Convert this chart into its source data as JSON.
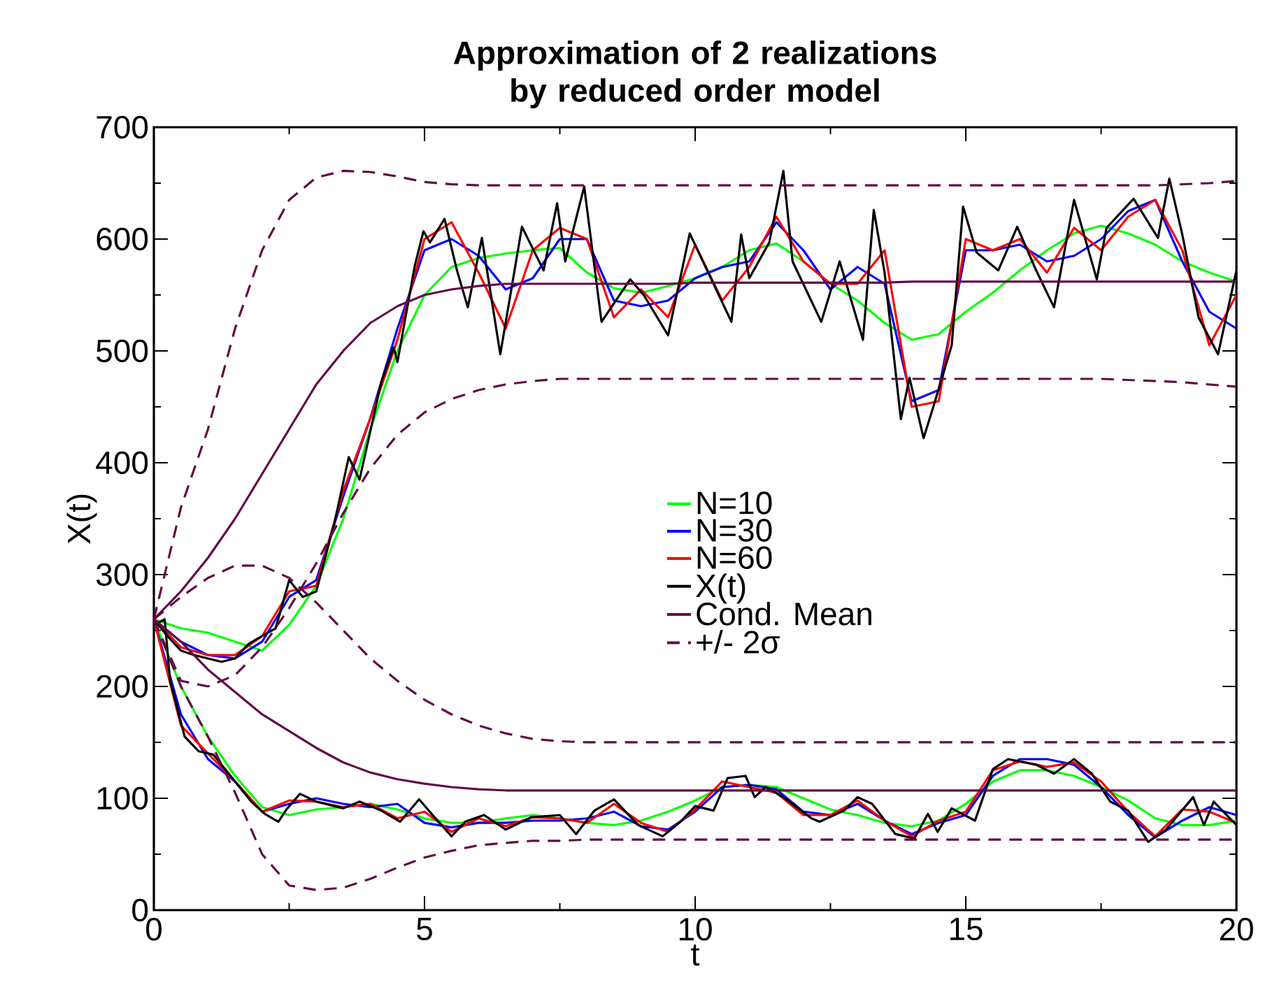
{
  "chart_data": {
    "type": "line",
    "title": "Approximation of 2 realizations by reduced order model",
    "xlabel": "t",
    "ylabel": "X(t)",
    "xlim": [
      0,
      20
    ],
    "ylim": [
      0,
      700
    ],
    "xticks": [
      0,
      5,
      10,
      15,
      20
    ],
    "yticks": [
      0,
      100,
      200,
      300,
      400,
      500,
      600,
      700
    ],
    "legend": "center",
    "marker": "none",
    "line_style": "solid",
    "x": [
      0,
      0.5,
      1,
      1.5,
      2,
      2.5,
      3,
      3.5,
      4,
      4.5,
      5,
      5.5,
      6,
      6.5,
      7,
      7.5,
      8,
      8.5,
      9,
      9.5,
      10,
      10.5,
      11,
      11.5,
      12,
      12.5,
      13,
      13.5,
      14,
      14.5,
      15,
      15.5,
      16,
      16.5,
      17,
      17.5,
      18,
      18.5,
      19,
      19.5,
      20
    ],
    "series": [
      {
        "name": "N=10",
        "color": "#00ff00",
        "values": [
          260,
          252,
          248,
          240,
          232,
          255,
          290,
          350,
          430,
          500,
          550,
          575,
          583,
          587,
          590,
          592,
          570,
          556,
          552,
          558,
          565,
          575,
          590,
          596,
          580,
          560,
          545,
          525,
          510,
          515,
          535,
          552,
          572,
          590,
          605,
          612,
          605,
          595,
          580,
          570,
          562
        ]
      },
      {
        "name": "N=30",
        "color": "#0000ff",
        "values": [
          260,
          240,
          228,
          225,
          240,
          280,
          295,
          370,
          440,
          520,
          590,
          600,
          585,
          555,
          565,
          600,
          600,
          545,
          540,
          545,
          565,
          575,
          580,
          615,
          590,
          555,
          575,
          560,
          455,
          465,
          590,
          590,
          595,
          580,
          585,
          600,
          625,
          635,
          580,
          535,
          520
        ]
      },
      {
        "name": "N=60",
        "color": "#ff0000",
        "values": [
          260,
          235,
          228,
          228,
          245,
          285,
          290,
          375,
          440,
          510,
          600,
          615,
          570,
          520,
          590,
          610,
          600,
          530,
          555,
          530,
          595,
          545,
          575,
          620,
          580,
          560,
          560,
          590,
          450,
          455,
          600,
          590,
          600,
          570,
          610,
          590,
          620,
          635,
          590,
          505,
          550
        ]
      },
      {
        "name": "X(t)",
        "color": "#000000",
        "x": [
          0,
          0.25,
          0.5,
          0.75,
          1,
          1.25,
          1.5,
          1.75,
          2,
          2.25,
          2.5,
          2.75,
          3,
          3.34,
          3.6,
          3.8,
          4.2,
          4.43,
          4.5,
          4.82,
          4.98,
          5.1,
          5.37,
          5.6,
          5.8,
          6.06,
          6.4,
          6.8,
          7.2,
          7.45,
          7.6,
          7.95,
          8.27,
          8.8,
          9.05,
          9.5,
          9.9,
          10.67,
          10.85,
          11.0,
          11.37,
          11.63,
          11.8,
          12.33,
          12.67,
          13.1,
          13.3,
          13.5,
          13.8,
          13.96,
          14.22,
          14.4,
          14.74,
          14.95,
          15.2,
          15.6,
          15.95,
          16.3,
          16.63,
          17.0,
          17.42,
          17.6,
          18.1,
          18.55,
          18.76,
          19.0,
          19.3,
          19.66,
          20
        ],
        "values": [
          260,
          245,
          232,
          228,
          225,
          222,
          225,
          238,
          245,
          252,
          295,
          280,
          285,
          347,
          405,
          385,
          472,
          503,
          490,
          576,
          607,
          597,
          618,
          572,
          539,
          601,
          497,
          611,
          572,
          632,
          580,
          647,
          526,
          564,
          550,
          514,
          605,
          526,
          604,
          565,
          597,
          661,
          580,
          526,
          580,
          510,
          626,
          570,
          439,
          476,
          422,
          450,
          505,
          629,
          588,
          572,
          611,
          572,
          539,
          635,
          564,
          610,
          636,
          601,
          654,
          604,
          530,
          497,
          572
        ]
      },
      {
        "name": "Cond. Mean",
        "color": "#640a46",
        "values": [
          260,
          285,
          315,
          350,
          390,
          430,
          470,
          500,
          525,
          540,
          550,
          555,
          558,
          560,
          560,
          560,
          560,
          560,
          560,
          560,
          561,
          561,
          561,
          561,
          561,
          561,
          561,
          561,
          562,
          562,
          562,
          562,
          562,
          562,
          562,
          562,
          562,
          562,
          562,
          562,
          562
        ]
      },
      {
        "name": "+/- 2σ",
        "color": "#640a46",
        "line_style": "dashed",
        "values": [
          260,
          360,
          430,
          520,
          590,
          635,
          655,
          661,
          660,
          656,
          651,
          649,
          648,
          648,
          648,
          648,
          648,
          648,
          648,
          648,
          648,
          648,
          648,
          648,
          648,
          648,
          648,
          648,
          648,
          648,
          648,
          648,
          648,
          648,
          648,
          648,
          648,
          648,
          649,
          650,
          652
        ]
      },
      {
        "color": "#640a46",
        "line_style": "dashed",
        "values": [
          260,
          205,
          200,
          210,
          235,
          270,
          310,
          355,
          395,
          425,
          445,
          457,
          465,
          470,
          473,
          475,
          475,
          475,
          475,
          475,
          475,
          475,
          475,
          475,
          475,
          475,
          475,
          475,
          475,
          475,
          475,
          475,
          475,
          475,
          475,
          475,
          474,
          473,
          472,
          470,
          468
        ]
      },
      {
        "color": "#00ff00",
        "values": [
          260,
          200,
          155,
          120,
          92,
          85,
          90,
          92,
          95,
          90,
          82,
          78,
          78,
          82,
          85,
          82,
          78,
          76,
          80,
          88,
          98,
          110,
          112,
          110,
          100,
          90,
          85,
          78,
          75,
          80,
          95,
          115,
          125,
          125,
          120,
          110,
          98,
          82,
          76,
          76,
          80
        ]
      },
      {
        "color": "#0000ff",
        "values": [
          260,
          175,
          135,
          115,
          88,
          95,
          100,
          95,
          92,
          95,
          78,
          74,
          78,
          78,
          80,
          80,
          82,
          88,
          75,
          72,
          88,
          110,
          112,
          108,
          88,
          85,
          95,
          80,
          68,
          78,
          85,
          120,
          135,
          135,
          130,
          110,
          85,
          65,
          80,
          92,
          85
        ]
      },
      {
        "color": "#ff0000",
        "values": [
          260,
          165,
          140,
          115,
          88,
          98,
          97,
          92,
          95,
          82,
          88,
          70,
          82,
          75,
          83,
          82,
          78,
          95,
          78,
          70,
          90,
          115,
          110,
          105,
          85,
          85,
          98,
          80,
          66,
          80,
          88,
          125,
          133,
          128,
          132,
          115,
          88,
          66,
          90,
          88,
          78
        ]
      },
      {
        "color": "#000000",
        "x": [
          0,
          0.2,
          0.3,
          0.57,
          0.83,
          1.1,
          1.25,
          1.45,
          1.8,
          2.05,
          2.3,
          2.45,
          2.7,
          3.0,
          3.5,
          3.8,
          4.2,
          4.55,
          4.9,
          5.15,
          5.5,
          5.75,
          6.1,
          6.5,
          6.97,
          7.5,
          7.8,
          8.14,
          8.5,
          8.95,
          9.4,
          9.73,
          10.0,
          10.34,
          10.6,
          10.93,
          11.1,
          11.3,
          11.63,
          12.15,
          12.3,
          12.75,
          13.0,
          13.27,
          13.7,
          14.05,
          14.3,
          14.48,
          14.74,
          15.17,
          15.5,
          15.78,
          16.3,
          16.63,
          17.0,
          17.33,
          17.67,
          18.0,
          18.37,
          18.7,
          19.2,
          19.4,
          19.58,
          20
        ],
        "values": [
          255,
          260,
          205,
          155,
          142,
          139,
          130,
          118,
          97,
          86,
          79,
          90,
          104,
          97,
          91,
          97,
          89,
          79,
          99,
          85,
          66,
          79,
          85,
          72,
          83,
          85,
          68,
          89,
          99,
          76,
          66,
          79,
          93,
          89,
          118,
          120,
          101,
          110,
          101,
          82,
          79,
          89,
          101,
          95,
          68,
          64,
          86,
          70,
          91,
          80,
          126,
          135,
          130,
          122,
          135,
          122,
          97,
          89,
          61,
          72,
          101,
          76,
          97,
          76
        ]
      },
      {
        "color": "#640a46",
        "values": [
          260,
          240,
          215,
          195,
          175,
          160,
          145,
          132,
          123,
          117,
          113,
          110,
          108,
          107,
          107,
          107,
          107,
          107,
          107,
          107,
          107,
          107,
          107,
          107,
          107,
          107,
          107,
          107,
          107,
          107,
          107,
          107,
          107,
          107,
          107,
          107,
          107,
          107,
          107,
          107,
          107
        ]
      },
      {
        "color": "#640a46",
        "line_style": "dashed",
        "values": [
          260,
          280,
          297,
          308,
          308,
          297,
          275,
          250,
          225,
          205,
          188,
          175,
          165,
          158,
          153,
          151,
          150,
          150,
          150,
          150,
          150,
          150,
          150,
          150,
          150,
          150,
          150,
          150,
          150,
          150,
          150,
          150,
          150,
          150,
          150,
          150,
          150,
          150,
          150,
          150,
          150
        ]
      },
      {
        "color": "#640a46",
        "line_style": "dashed",
        "values": [
          260,
          200,
          155,
          105,
          50,
          22,
          18,
          20,
          28,
          38,
          47,
          53,
          58,
          60,
          62,
          62,
          63,
          63,
          63,
          63,
          63,
          63,
          63,
          63,
          63,
          63,
          63,
          63,
          63,
          63,
          63,
          63,
          63,
          63,
          63,
          63,
          63,
          63,
          63,
          63,
          63
        ]
      }
    ]
  }
}
